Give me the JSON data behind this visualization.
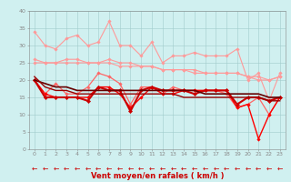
{
  "x": [
    0,
    1,
    2,
    3,
    4,
    5,
    6,
    7,
    8,
    9,
    10,
    11,
    12,
    13,
    14,
    15,
    16,
    17,
    18,
    19,
    20,
    21,
    22,
    23
  ],
  "series": [
    {
      "color": "#FF9999",
      "linewidth": 0.8,
      "marker": "D",
      "markersize": 1.8,
      "values": [
        34,
        30,
        29,
        32,
        33,
        30,
        31,
        37,
        30,
        30,
        27,
        31,
        25,
        27,
        27,
        28,
        27,
        27,
        27,
        29,
        20,
        22,
        14,
        22
      ]
    },
    {
      "color": "#FF9999",
      "linewidth": 0.8,
      "marker": "D",
      "markersize": 1.8,
      "values": [
        26,
        25,
        25,
        26,
        26,
        25,
        25,
        26,
        25,
        25,
        24,
        24,
        23,
        23,
        23,
        22,
        22,
        22,
        22,
        22,
        21,
        20,
        20,
        21
      ]
    },
    {
      "color": "#FF9999",
      "linewidth": 0.8,
      "marker": "D",
      "markersize": 1.8,
      "values": [
        25,
        25,
        25,
        25,
        25,
        25,
        25,
        25,
        24,
        24,
        24,
        24,
        23,
        23,
        23,
        23,
        22,
        22,
        22,
        22,
        21,
        21,
        20,
        21
      ]
    },
    {
      "color": "#FF6666",
      "linewidth": 0.9,
      "marker": "D",
      "markersize": 1.8,
      "values": [
        20,
        16,
        19,
        16,
        16,
        18,
        22,
        21,
        19,
        13,
        18,
        18,
        16,
        18,
        17,
        17,
        17,
        17,
        16,
        12,
        13,
        15,
        10,
        15
      ]
    },
    {
      "color": "#FF0000",
      "linewidth": 1.0,
      "marker": "D",
      "markersize": 1.8,
      "values": [
        20,
        16,
        15,
        15,
        15,
        15,
        18,
        18,
        16,
        12,
        15,
        18,
        16,
        16,
        17,
        17,
        17,
        17,
        17,
        12,
        13,
        3,
        10,
        15
      ]
    },
    {
      "color": "#CC0000",
      "linewidth": 1.5,
      "marker": "D",
      "markersize": 2.2,
      "values": [
        20,
        15,
        15,
        15,
        15,
        14,
        18,
        17,
        17,
        11,
        17,
        18,
        17,
        17,
        17,
        16,
        17,
        17,
        17,
        13,
        15,
        15,
        14,
        15
      ]
    },
    {
      "color": "#660000",
      "linewidth": 1.2,
      "marker": null,
      "markersize": 0,
      "values": [
        20,
        19,
        18,
        18,
        17,
        17,
        17,
        17,
        17,
        17,
        17,
        17,
        17,
        17,
        17,
        17,
        16,
        16,
        16,
        16,
        16,
        16,
        15,
        15
      ]
    },
    {
      "color": "#990000",
      "linewidth": 1.0,
      "marker": null,
      "markersize": 0,
      "values": [
        21,
        18,
        17,
        17,
        16,
        16,
        16,
        16,
        16,
        16,
        16,
        16,
        16,
        16,
        15,
        15,
        15,
        15,
        15,
        15,
        15,
        15,
        14,
        14
      ]
    }
  ],
  "xlim": [
    -0.5,
    23.5
  ],
  "ylim": [
    0,
    40
  ],
  "yticks": [
    0,
    5,
    10,
    15,
    20,
    25,
    30,
    35,
    40
  ],
  "xticks": [
    0,
    1,
    2,
    3,
    4,
    5,
    6,
    7,
    8,
    9,
    10,
    11,
    12,
    13,
    14,
    15,
    16,
    17,
    18,
    19,
    20,
    21,
    22,
    23
  ],
  "xlabel": "Vent moyen/en rafales ( km/h )",
  "xlabel_color": "#CC0000",
  "xlabel_fontsize": 6.0,
  "bg_color": "#D0F0F0",
  "grid_color": "#A0CCCC",
  "tick_fontsize": 4.5,
  "fig_width": 3.2,
  "fig_height": 2.0,
  "dpi": 100
}
